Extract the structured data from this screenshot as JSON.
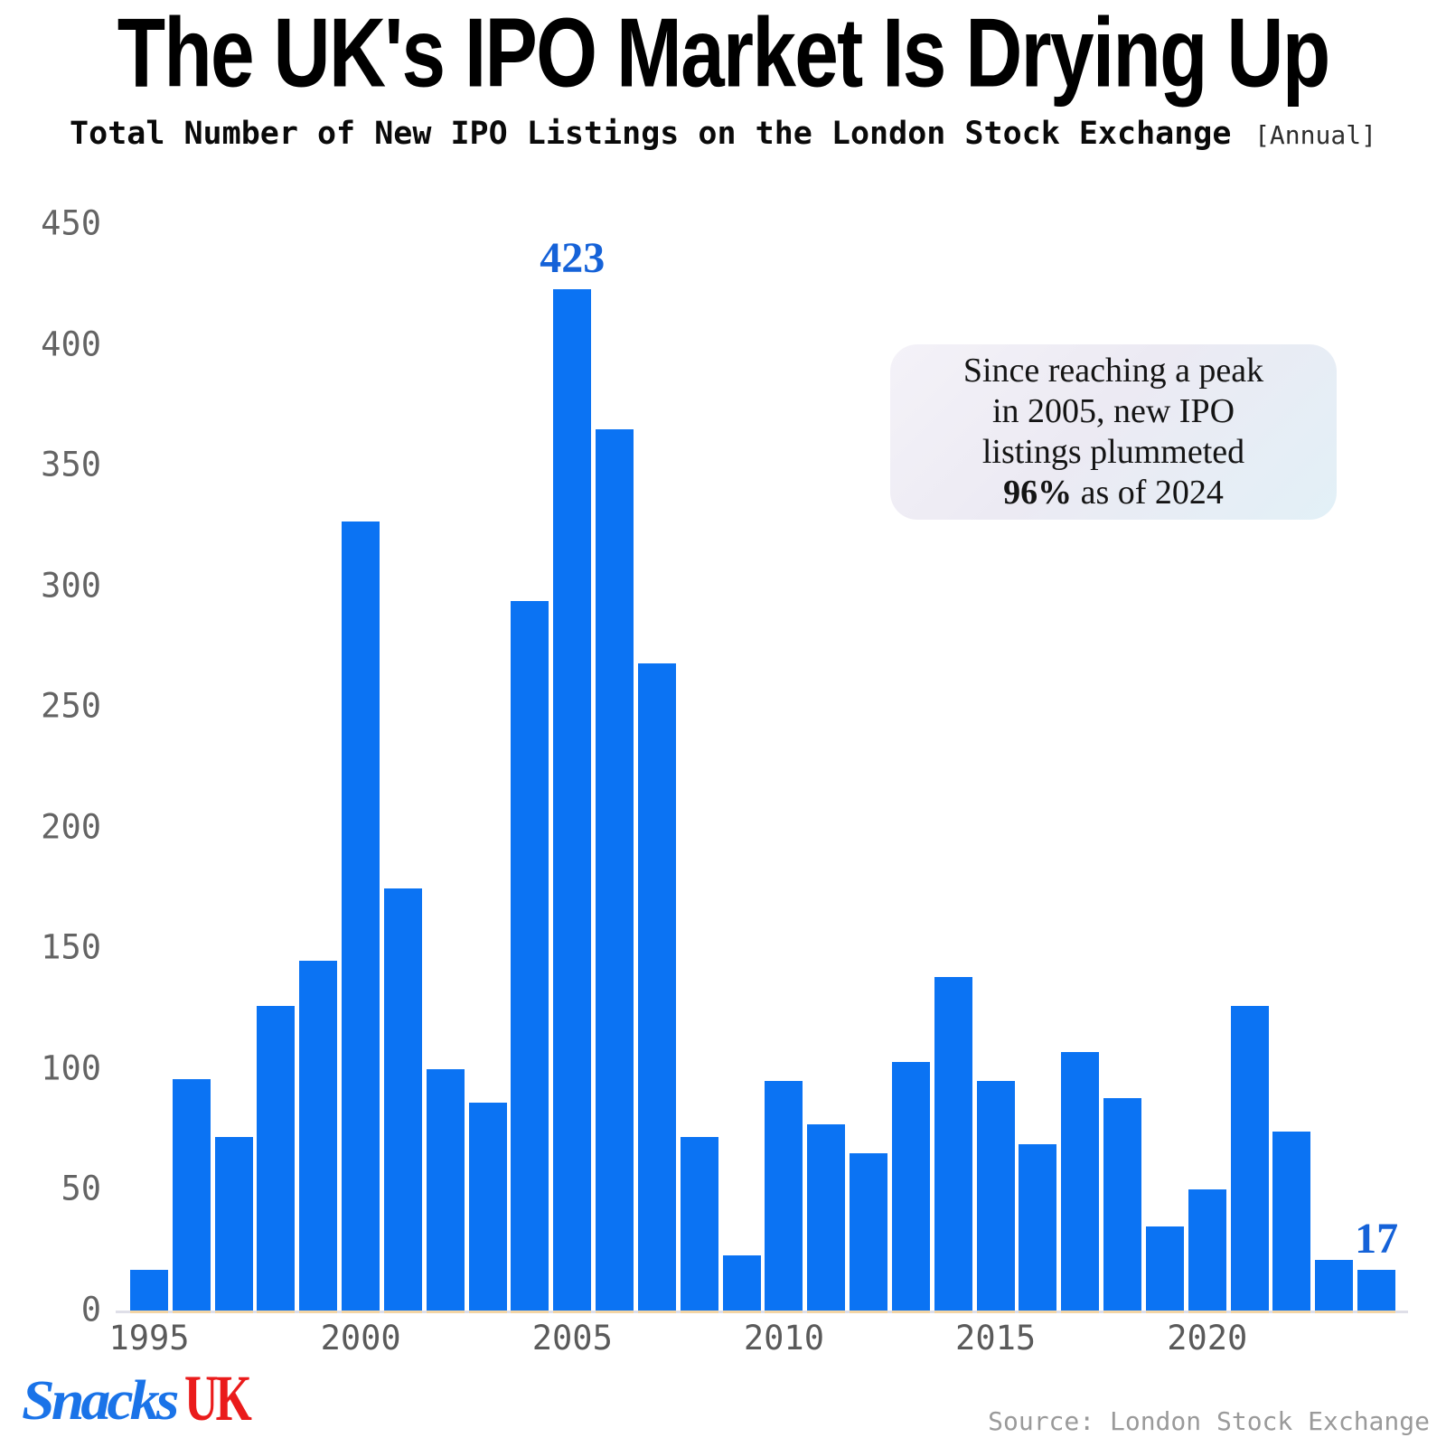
{
  "title": "The UK's IPO Market Is Drying Up",
  "subtitle": "Total Number of New IPO Listings on the London Stock Exchange",
  "subtitle_tag": "[Annual]",
  "annotation": {
    "line1": "Since reaching a peak",
    "line2": "in 2005, new IPO",
    "line3": "listings plummeted",
    "line4_bold": "96%",
    "line4_rest": " as of 2024"
  },
  "footer": {
    "logo_script": "Snacks",
    "logo_suffix": "UK",
    "source": "Source: London Stock Exchange"
  },
  "chart_data": {
    "type": "bar",
    "title": "The UK's IPO Market Is Drying Up",
    "subtitle": "Total Number of New IPO Listings on the London Stock Exchange [Annual]",
    "xlabel": "",
    "ylabel": "",
    "x": [
      1995,
      1996,
      1997,
      1998,
      1999,
      2000,
      2001,
      2002,
      2003,
      2004,
      2005,
      2006,
      2007,
      2008,
      2009,
      2010,
      2011,
      2012,
      2013,
      2014,
      2015,
      2016,
      2017,
      2018,
      2019,
      2020,
      2021,
      2022,
      2023,
      2024
    ],
    "values": [
      17,
      96,
      72,
      126,
      145,
      327,
      175,
      100,
      86,
      294,
      423,
      365,
      268,
      72,
      23,
      95,
      77,
      65,
      103,
      138,
      95,
      69,
      107,
      88,
      35,
      50,
      126,
      74,
      21,
      17
    ],
    "bar_labels": [
      {
        "year": 2005,
        "text": "423"
      },
      {
        "year": 2024,
        "text": "17"
      }
    ],
    "yticks": [
      450,
      400,
      350,
      300,
      250,
      200,
      150,
      100,
      50,
      0
    ],
    "xticks": [
      1995,
      2000,
      2005,
      2010,
      2015,
      2020
    ],
    "ylim": [
      0,
      450
    ],
    "grid": false,
    "legend": "none",
    "bar_color": "#0b73f3",
    "bar_label_color": "#1562d8",
    "tick_color": "#646464",
    "annotation_text": "Since reaching a peak in 2005, new IPO listings plummeted 96% as of 2024",
    "source": "London Stock Exchange"
  }
}
